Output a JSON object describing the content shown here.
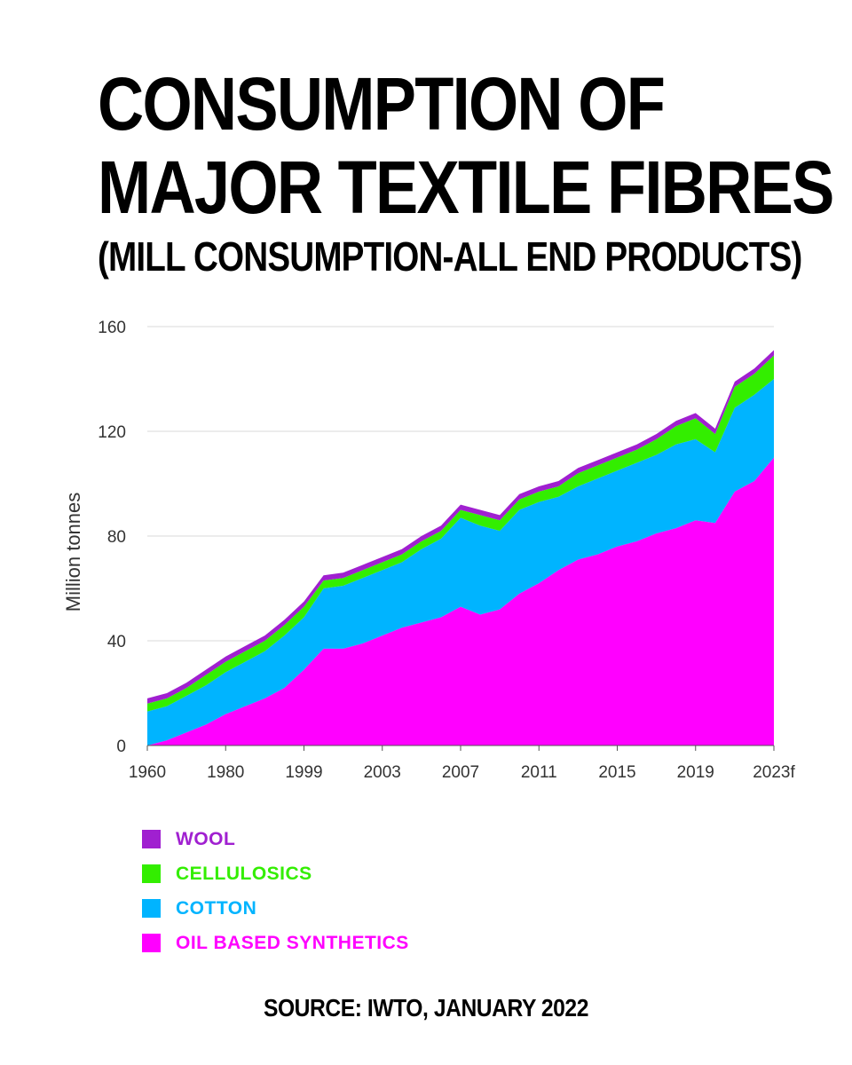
{
  "header": {
    "title_line1": "CONSUMPTION OF",
    "title_line2": "MAJOR TEXTILE FIBRES",
    "subtitle": "(MILL CONSUMPTION-ALL END PRODUCTS)"
  },
  "footer": {
    "source": "SOURCE: IWTO, JANUARY 2022"
  },
  "chart_data": {
    "type": "area",
    "stacked": true,
    "ylabel": "Million tonnes",
    "ylim": [
      0,
      160
    ],
    "yticks": [
      0,
      40,
      80,
      120,
      160
    ],
    "xtick_labels": [
      "1960",
      "1980",
      "1999",
      "2003",
      "2007",
      "2011",
      "2015",
      "2019",
      "2023f"
    ],
    "grid": "horizontal",
    "x_points": 33,
    "series": [
      {
        "name": "OIL BASED SYNTHETICS",
        "color": "#ff00ff",
        "values": [
          0,
          2,
          5,
          8,
          12,
          15,
          18,
          22,
          29,
          37,
          37,
          39,
          42,
          45,
          47,
          49,
          53,
          50,
          52,
          58,
          62,
          67,
          71,
          73,
          76,
          78,
          81,
          83,
          86,
          85,
          97,
          101,
          110
        ]
      },
      {
        "name": "COTTON",
        "color": "#00b4ff",
        "values": [
          13,
          13,
          14,
          15,
          16,
          17,
          18,
          20,
          20,
          23,
          24,
          25,
          25,
          25,
          28,
          30,
          34,
          34,
          30,
          32,
          31,
          28,
          28,
          29,
          29,
          30,
          30,
          32,
          31,
          27,
          32,
          33,
          30
        ]
      },
      {
        "name": "CELLULOSICS",
        "color": "#33ee00",
        "values": [
          3,
          3,
          3,
          4,
          4,
          4,
          4,
          4,
          4,
          3,
          3,
          3,
          3,
          3,
          3,
          3,
          3,
          4,
          4,
          4,
          4,
          4,
          5,
          5,
          5,
          5,
          6,
          7,
          8,
          7,
          8,
          8,
          9
        ]
      },
      {
        "name": "WOOL",
        "color": "#a020d0",
        "values": [
          2,
          2,
          2,
          2,
          2,
          2,
          2,
          2,
          2,
          2,
          2,
          2,
          2,
          2,
          2,
          2,
          2,
          2,
          2,
          2,
          2,
          2,
          2,
          2,
          2,
          2,
          2,
          2,
          2,
          2,
          2,
          2,
          2
        ]
      }
    ],
    "legend_order": [
      "WOOL",
      "CELLULOSICS",
      "COTTON",
      "OIL BASED SYNTHETICS"
    ],
    "legend_position": "bottom-left"
  }
}
